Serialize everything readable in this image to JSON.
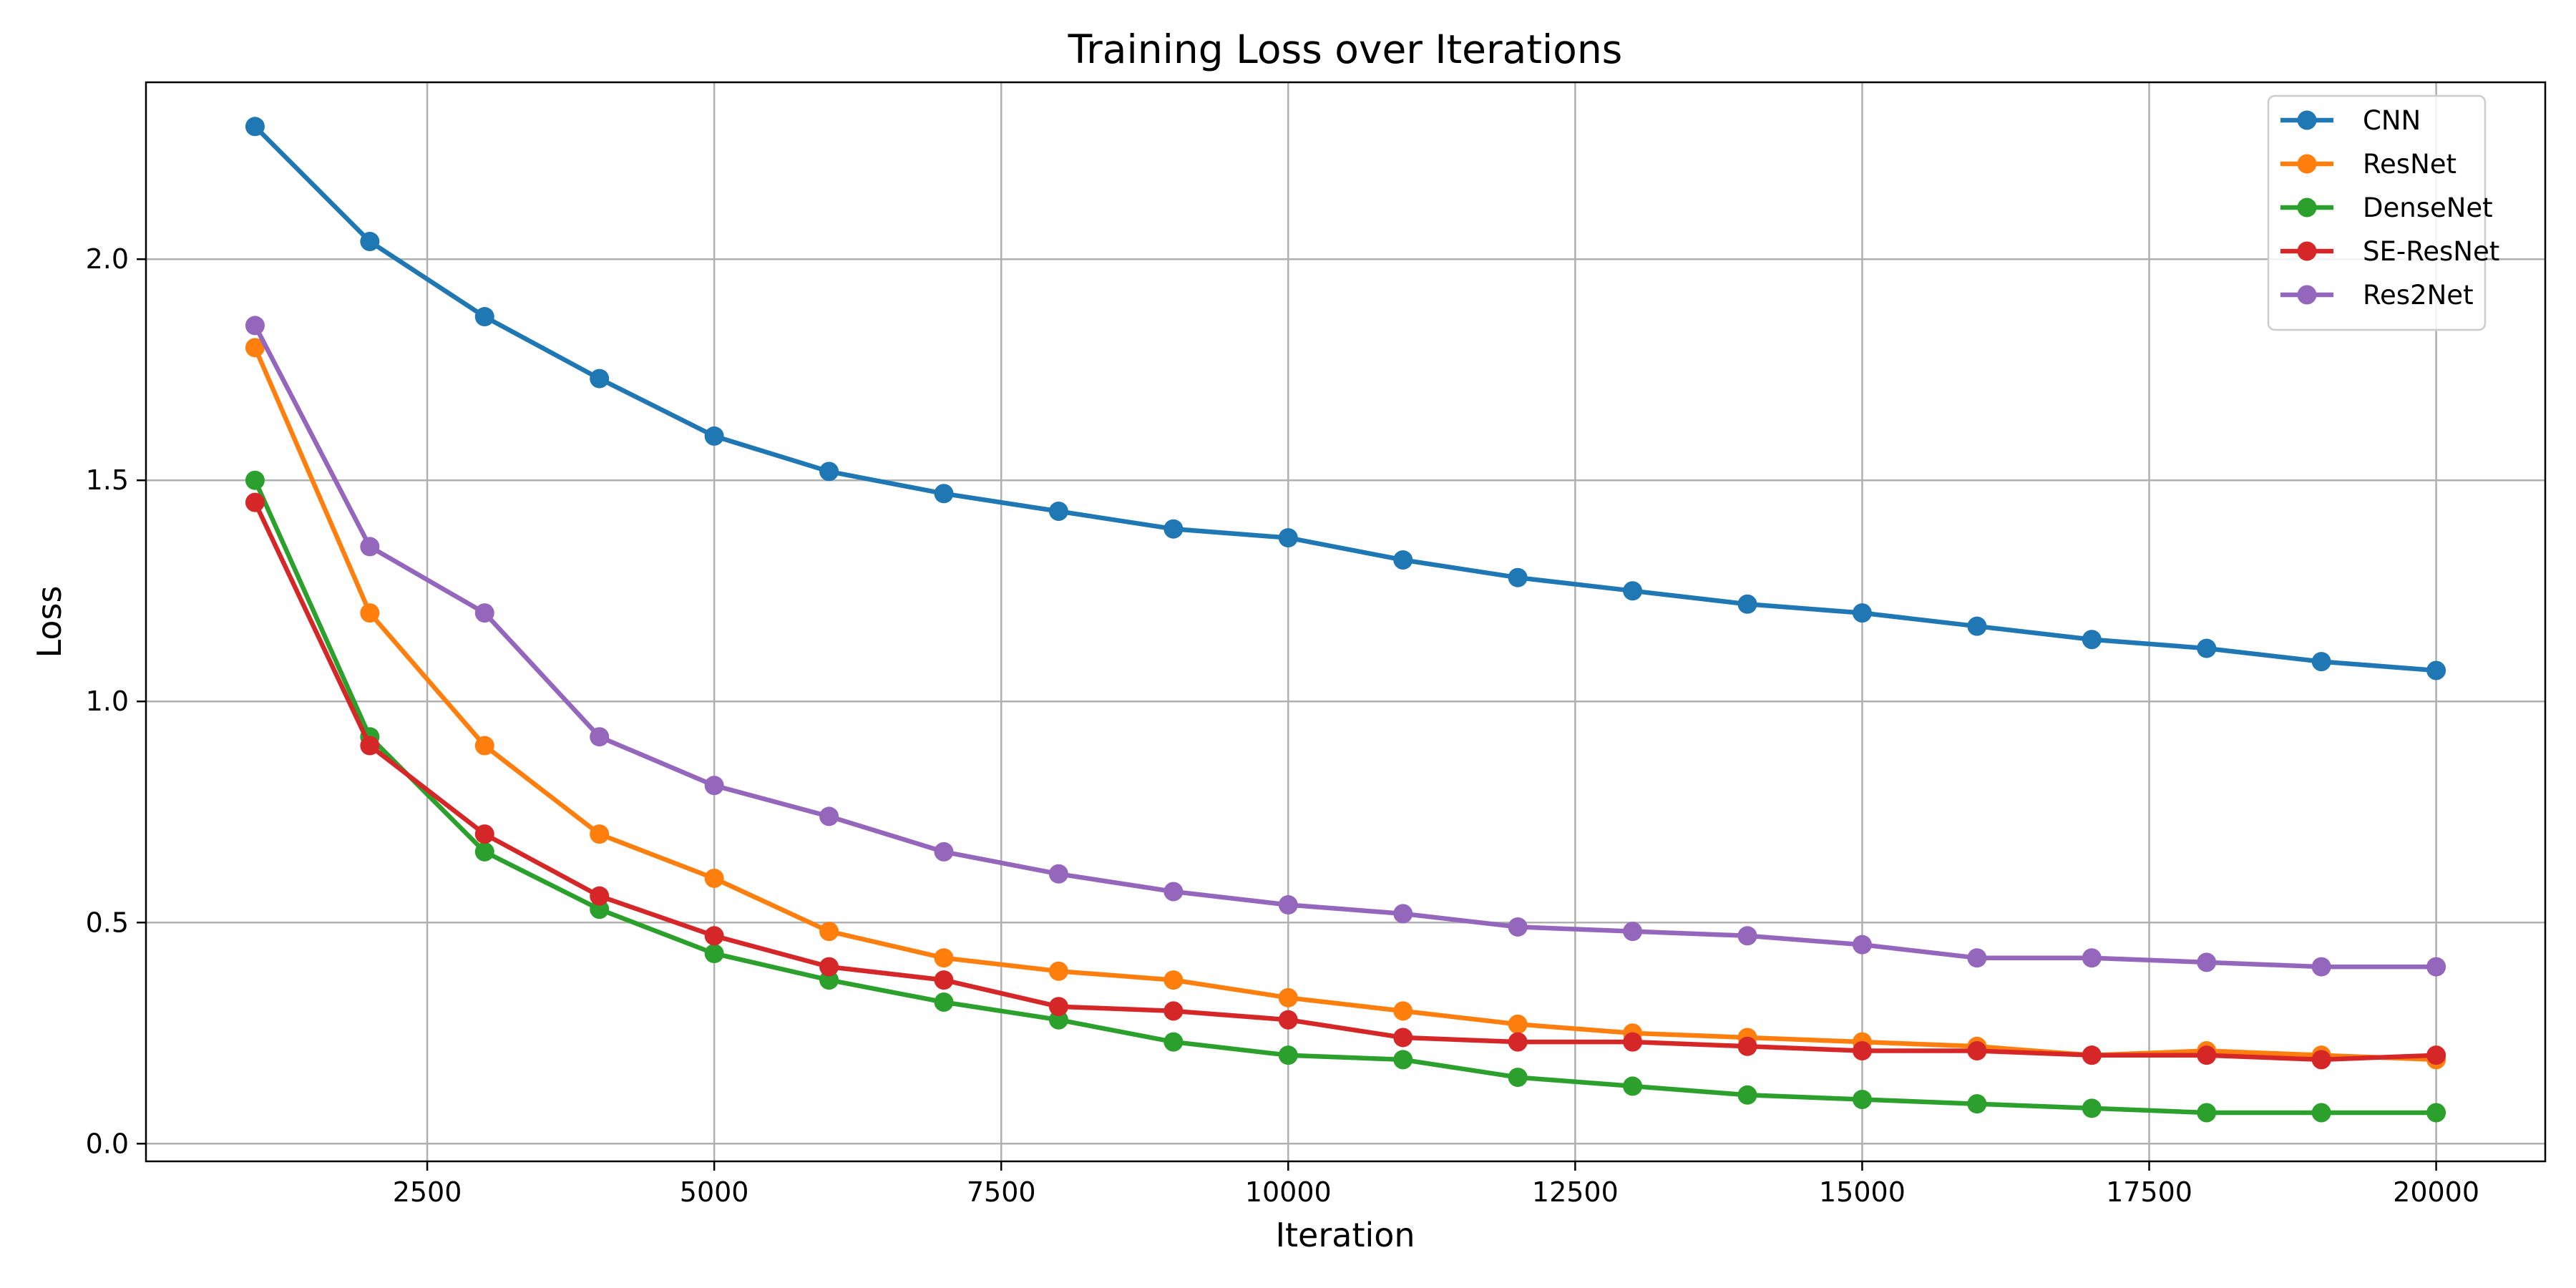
{
  "chart_data": {
    "type": "line",
    "title": "Training Loss over Iterations",
    "xlabel": "Iteration",
    "ylabel": "Loss",
    "xlim": [
      50,
      20950
    ],
    "ylim": [
      -0.04,
      2.4
    ],
    "xticks": [
      2500,
      5000,
      7500,
      10000,
      12500,
      15000,
      17500,
      20000
    ],
    "yticks": [
      0.0,
      0.5,
      1.0,
      1.5,
      2.0
    ],
    "ytick_labels": [
      "0.0",
      "0.5",
      "1.0",
      "1.5",
      "2.0"
    ],
    "grid": true,
    "legend_position": "top-right",
    "x": [
      1000,
      2000,
      3000,
      4000,
      5000,
      6000,
      7000,
      8000,
      9000,
      10000,
      11000,
      12000,
      13000,
      14000,
      15000,
      16000,
      17000,
      18000,
      19000,
      20000
    ],
    "series": [
      {
        "name": "CNN",
        "color": "#1f77b4",
        "values": [
          2.3,
          2.04,
          1.87,
          1.73,
          1.6,
          1.52,
          1.47,
          1.43,
          1.39,
          1.37,
          1.32,
          1.28,
          1.25,
          1.22,
          1.2,
          1.17,
          1.14,
          1.12,
          1.09,
          1.07
        ]
      },
      {
        "name": "ResNet",
        "color": "#ff7f0e",
        "values": [
          1.8,
          1.2,
          0.9,
          0.7,
          0.6,
          0.48,
          0.42,
          0.39,
          0.37,
          0.33,
          0.3,
          0.27,
          0.25,
          0.24,
          0.23,
          0.22,
          0.2,
          0.21,
          0.2,
          0.19
        ]
      },
      {
        "name": "DenseNet",
        "color": "#2ca02c",
        "values": [
          1.5,
          0.92,
          0.66,
          0.53,
          0.43,
          0.37,
          0.32,
          0.28,
          0.23,
          0.2,
          0.19,
          0.15,
          0.13,
          0.11,
          0.1,
          0.09,
          0.08,
          0.07,
          0.07,
          0.07
        ]
      },
      {
        "name": "SE-ResNet",
        "color": "#d62728",
        "values": [
          1.45,
          0.9,
          0.7,
          0.56,
          0.47,
          0.4,
          0.37,
          0.31,
          0.3,
          0.28,
          0.24,
          0.23,
          0.23,
          0.22,
          0.21,
          0.21,
          0.2,
          0.2,
          0.19,
          0.2
        ]
      },
      {
        "name": "Res2Net",
        "color": "#9467bd",
        "values": [
          1.85,
          1.35,
          1.2,
          0.92,
          0.81,
          0.74,
          0.66,
          0.61,
          0.57,
          0.54,
          0.52,
          0.49,
          0.48,
          0.47,
          0.45,
          0.42,
          0.42,
          0.41,
          0.4,
          0.4
        ]
      }
    ]
  }
}
